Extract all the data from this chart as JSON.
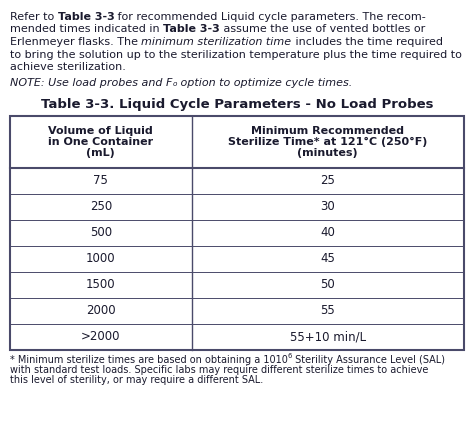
{
  "intro_segments": [
    [
      [
        "Refer to ",
        false,
        false
      ],
      [
        "Table 3-3",
        true,
        false
      ],
      [
        " for recommended Liquid cycle parameters. The recom-",
        false,
        false
      ]
    ],
    [
      [
        "mended times indicated in ",
        false,
        false
      ],
      [
        "Table 3-3",
        true,
        false
      ],
      [
        " assume the use of vented bottles or",
        false,
        false
      ]
    ],
    [
      [
        "Erlenmeyer flasks. The ",
        false,
        false
      ],
      [
        "minimum sterilization time",
        false,
        true
      ],
      [
        " includes the time required",
        false,
        false
      ]
    ],
    [
      [
        "to bring the solution up to the sterilization temperature plus the time required to",
        false,
        false
      ]
    ],
    [
      [
        "achieve sterilization.",
        false,
        false
      ]
    ]
  ],
  "note_pre": "NOTE: Use load probes and F",
  "note_sub": "o",
  "note_post": " option to optimize cycle times.",
  "table_title": "Table 3-3. Liquid Cycle Parameters - No Load Probes",
  "col1_header_lines": [
    "Volume of Liquid",
    "in One Container",
    "(mL)"
  ],
  "col2_header_lines": [
    "Minimum Recommended",
    "Sterilize Time* at 121°C (250°F)",
    "(minutes)"
  ],
  "rows": [
    [
      "75",
      "25"
    ],
    [
      "250",
      "30"
    ],
    [
      "500",
      "40"
    ],
    [
      "1000",
      "45"
    ],
    [
      "1500",
      "50"
    ],
    [
      "2000",
      "55"
    ],
    [
      ">2000",
      "55+10 min/L"
    ]
  ],
  "footnote_lines": [
    [
      "* Minimum sterilize times are based on obtaining a 10",
      "6",
      " Sterility Assurance Level (SAL)"
    ],
    [
      "with standard test loads. Specific labs may require different sterilize times to achieve"
    ],
    [
      "this level of sterility, or may require a different SAL."
    ]
  ],
  "bg_color": "#ffffff",
  "text_color": "#1a1a2e",
  "border_color": "#4a4a6a",
  "intro_fontsize": 8.0,
  "note_fontsize": 8.0,
  "title_fontsize": 9.5,
  "header_fontsize": 8.0,
  "cell_fontsize": 8.5,
  "footnote_fontsize": 7.0
}
